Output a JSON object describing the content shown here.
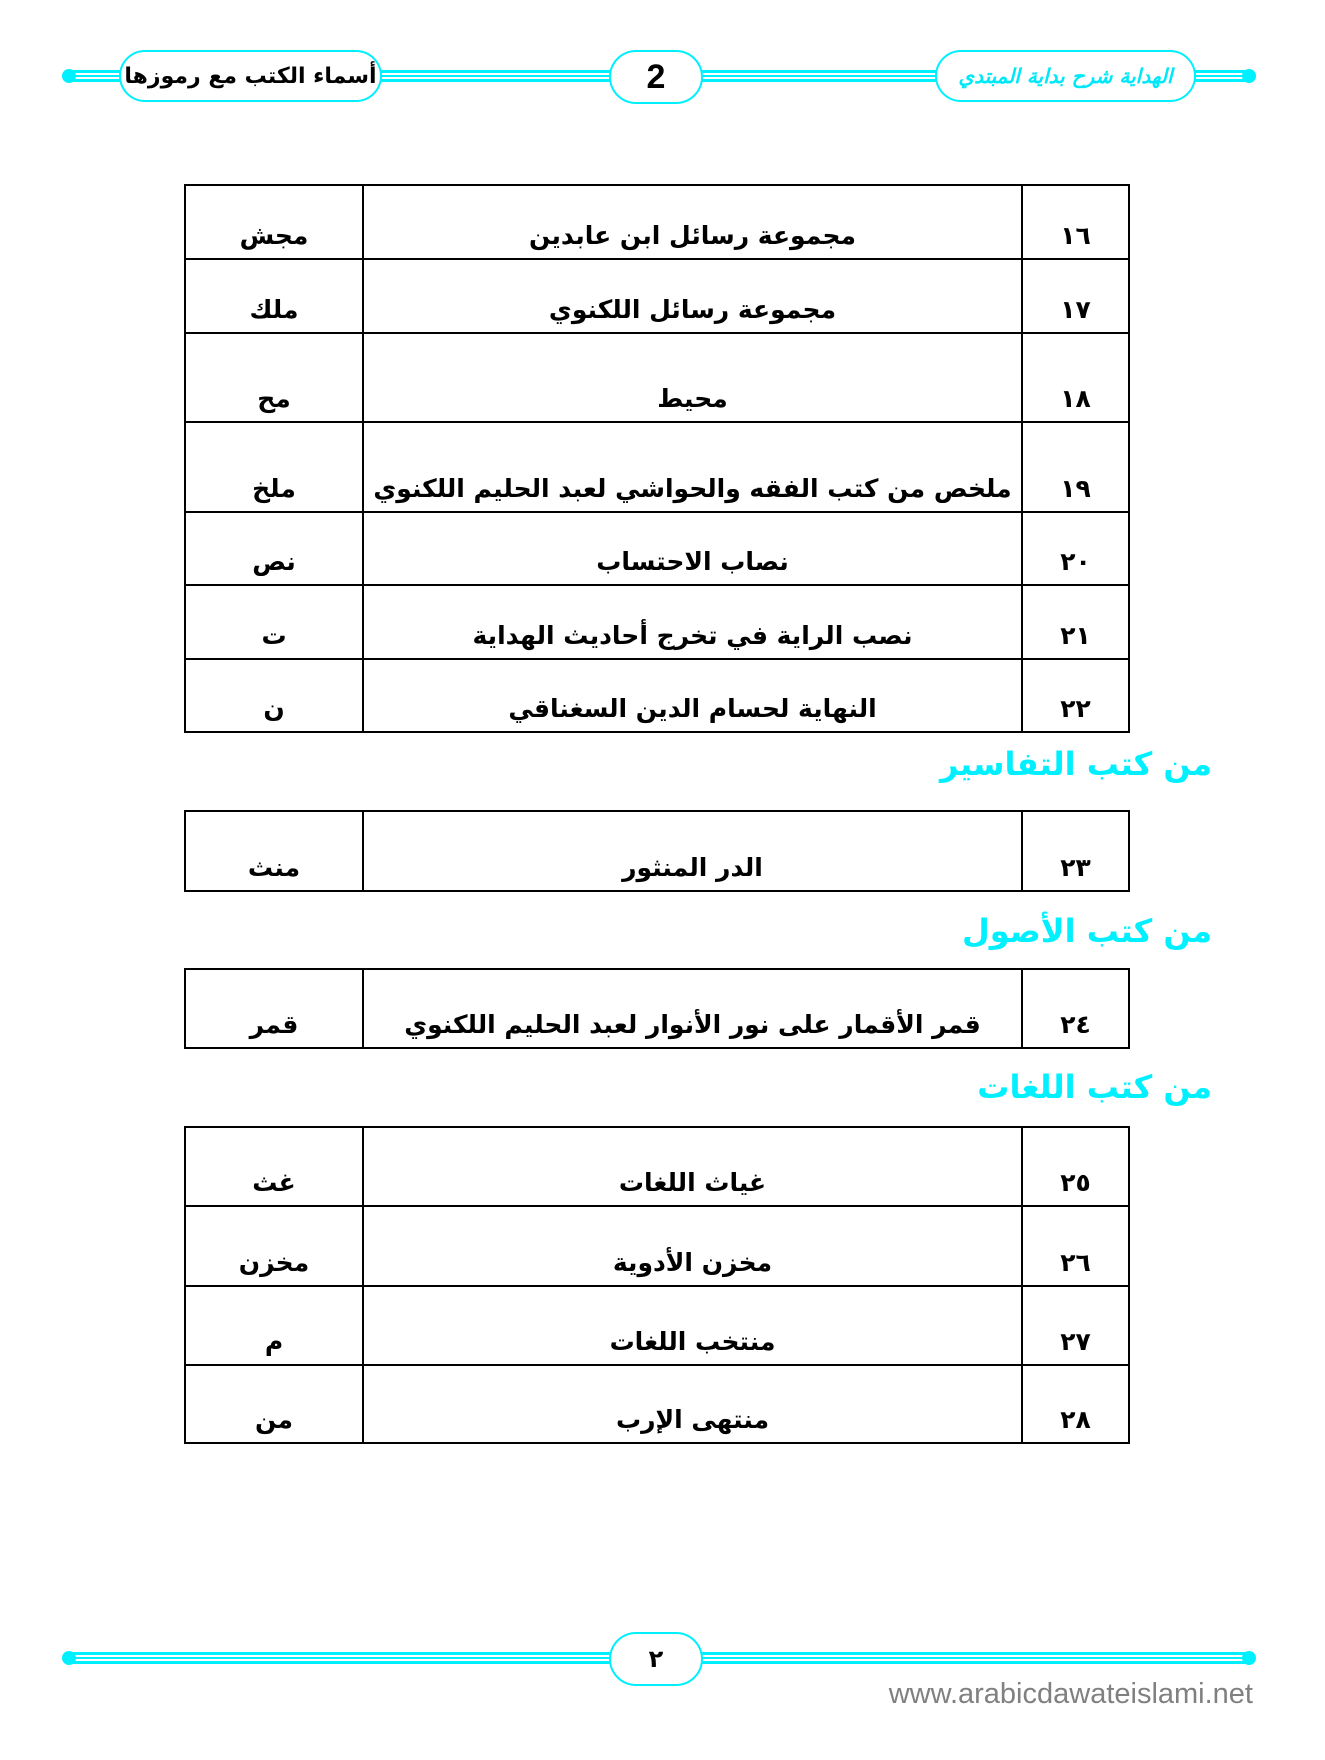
{
  "header": {
    "chapter_title": "أسماء الكتب مع رموزها",
    "page_number": "2",
    "book_title": "الهداية شرح بداية المبتدي"
  },
  "tables": [
    {
      "rows": [
        {
          "num": "١٦",
          "title": "مجموعة رسائل ابن عابدين",
          "code": "مجش"
        },
        {
          "num": "١٧",
          "title": "مجموعة رسائل اللكنوي",
          "code": "ملك"
        },
        {
          "num": "١٨",
          "title": "محيط",
          "code": "مح"
        },
        {
          "num": "١٩",
          "title": "ملخص من كتب الفقه والحواشي لعبد الحليم اللكنوي",
          "code": "ملخ"
        },
        {
          "num": "٢٠",
          "title": "نصاب الاحتساب",
          "code": "نص"
        },
        {
          "num": "٢١",
          "title": "نصب الراية في تخرج أحاديث الهداية",
          "code": "ت"
        },
        {
          "num": "٢٢",
          "title": "النهاية لحسام الدين السغناقي",
          "code": "ن"
        }
      ]
    },
    {
      "heading": "من كتب التفاسير",
      "rows": [
        {
          "num": "٢٣",
          "title": "الدر المنثور",
          "code": "منث"
        }
      ]
    },
    {
      "heading": "من كتب الأصول",
      "rows": [
        {
          "num": "٢٤",
          "title": "قمر الأقمار على نور الأنوار لعبد الحليم اللكنوي",
          "code": "قمر"
        }
      ]
    },
    {
      "heading": "من كتب اللغات",
      "rows": [
        {
          "num": "٢٥",
          "title": "غياث اللغات",
          "code": "غث"
        },
        {
          "num": "٢٦",
          "title": "مخزن الأدوية",
          "code": "مخزن"
        },
        {
          "num": "٢٧",
          "title": "منتخب اللغات",
          "code": "م"
        },
        {
          "num": "٢٨",
          "title": "منتهى الإرب",
          "code": "من"
        }
      ]
    }
  ],
  "footer": {
    "page_number": "٢",
    "website": "www.arabicdawateislami.net"
  },
  "colors": {
    "ornament": "#00f0ff",
    "heading": "#00f0ff",
    "url": "#808080"
  }
}
